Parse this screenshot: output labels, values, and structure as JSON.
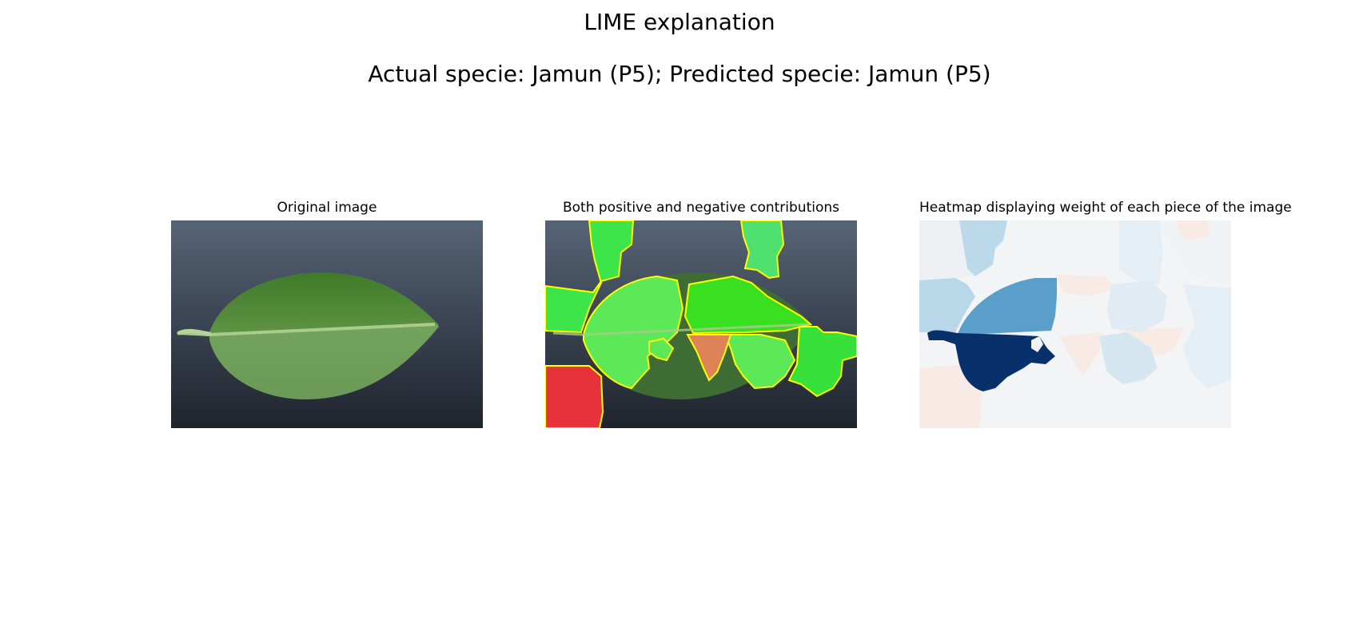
{
  "figure": {
    "title": "LIME explanation",
    "subtitle": "Actual specie: Jamun (P5); Predicted specie: Jamun (P5)"
  },
  "panels": [
    {
      "title": "Original image"
    },
    {
      "title": "Both positive and negative contributions"
    },
    {
      "title": "Heatmap displaying weight of each piece of the image"
    }
  ],
  "colors": {
    "background_dark": "#2f3744",
    "leaf_green": "#4f8a3a",
    "positive_green": "#33e33a",
    "negative_red": "#e8323a",
    "boundary_yellow": "#ffff00",
    "heat_dark_blue": "#08306b",
    "heat_mid_blue": "#5a9fca",
    "heat_light_blue": "#b8d7e8",
    "heat_pale": "#f2f4f6",
    "heat_pale_red": "#f8ebe5"
  }
}
